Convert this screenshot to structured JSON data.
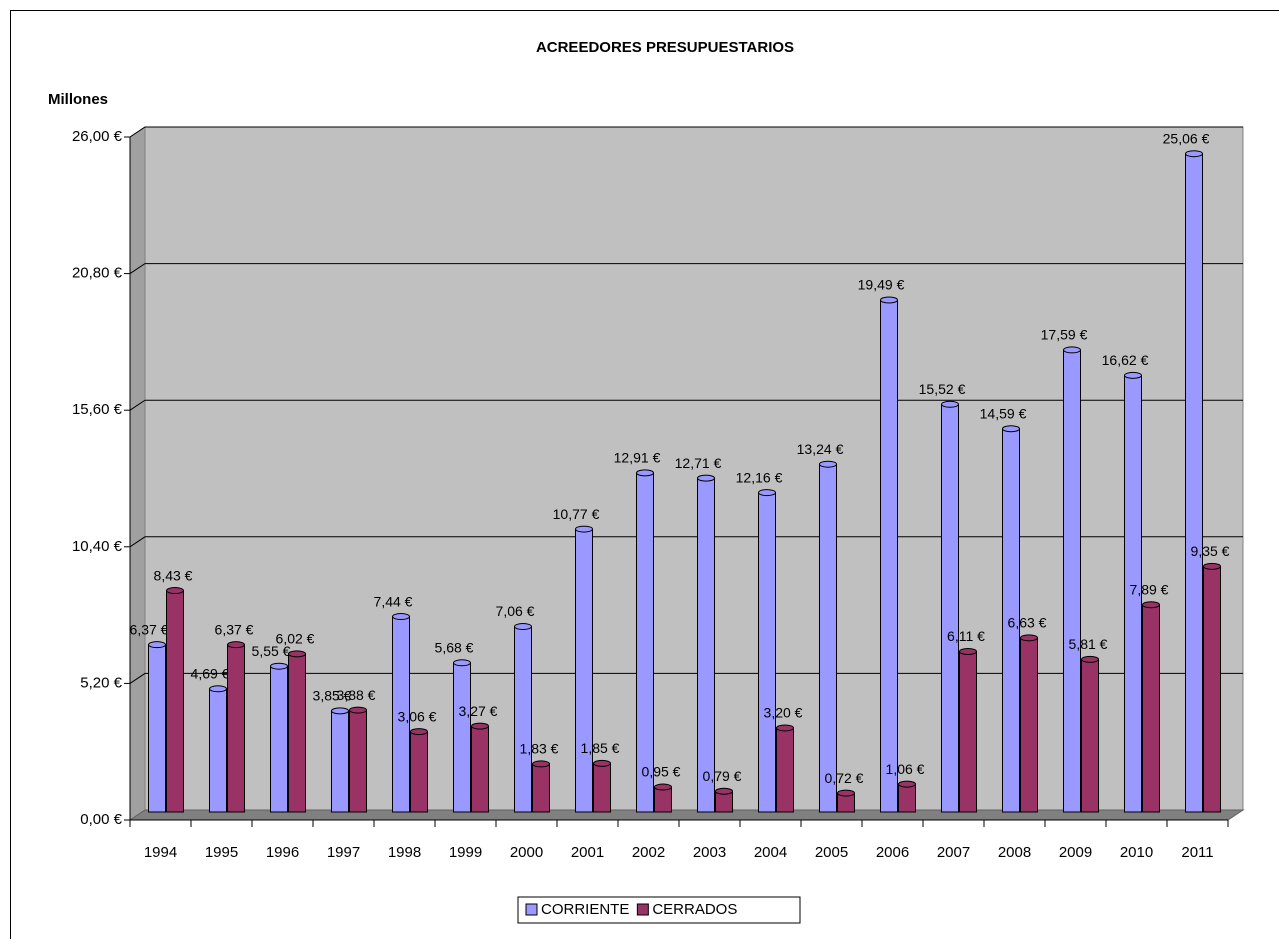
{
  "chart_data": {
    "type": "bar",
    "title": "ACREEDORES PRESUPUESTARIOS",
    "y_label": "Millones",
    "categories": [
      "1994",
      "1995",
      "1996",
      "1997",
      "1998",
      "1999",
      "2000",
      "2001",
      "2002",
      "2003",
      "2004",
      "2005",
      "2006",
      "2007",
      "2008",
      "2009",
      "2010",
      "2011"
    ],
    "series": [
      {
        "name": "CORRIENTE",
        "color": "#9999ff",
        "values": [
          6.37,
          4.69,
          5.55,
          3.85,
          7.44,
          5.68,
          7.06,
          10.77,
          12.91,
          12.71,
          12.16,
          13.24,
          19.49,
          15.52,
          14.59,
          17.59,
          16.62,
          25.06
        ],
        "value_labels": [
          "6,37 €",
          "4,69 €",
          "5,55 €",
          "3,85 €",
          "7,44 €",
          "5,68 €",
          "7,06 €",
          "10,77 €",
          "12,91 €",
          "12,71 €",
          "12,16 €",
          "13,24 €",
          "19,49 €",
          "15,52 €",
          "14,59 €",
          "17,59 €",
          "16,62 €",
          "25,06 €"
        ]
      },
      {
        "name": "CERRADOS",
        "color": "#993366",
        "values": [
          8.43,
          6.37,
          6.02,
          3.88,
          3.06,
          3.27,
          1.83,
          1.85,
          0.95,
          0.79,
          3.2,
          0.72,
          1.06,
          6.11,
          6.63,
          5.81,
          7.89,
          9.35
        ],
        "value_labels": [
          "8,43 €",
          "6,37 €",
          "6,02 €",
          "3,88 €",
          "3,06 €",
          "3,27 €",
          "1,83 €",
          "1,85 €",
          "0,95 €",
          "0,79 €",
          "3,20 €",
          "0,72 €",
          "1,06 €",
          "6,11 €",
          "6,63 €",
          "5,81 €",
          "7,89 €",
          "9,35 €"
        ]
      }
    ],
    "ylim": [
      0,
      26
    ],
    "yticks": [
      {
        "value": 0,
        "label": "0,00 €"
      },
      {
        "value": 5.2,
        "label": "5,20 €"
      },
      {
        "value": 10.4,
        "label": "10,40 €"
      },
      {
        "value": 15.6,
        "label": "15,60 €"
      },
      {
        "value": 20.8,
        "label": "20,80 €"
      },
      {
        "value": 26,
        "label": "26,00 €"
      }
    ],
    "grid": true,
    "legend": "bottom"
  }
}
